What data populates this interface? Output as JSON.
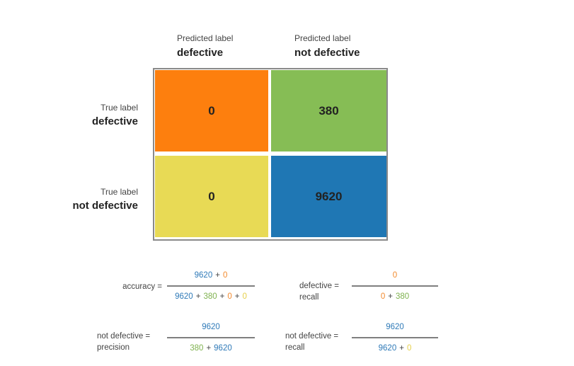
{
  "columns": [
    {
      "caption": "Predicted label",
      "label": "defective"
    },
    {
      "caption": "Predicted label",
      "label": "not defective"
    }
  ],
  "rows": [
    {
      "caption": "True label",
      "label": "defective"
    },
    {
      "caption": "True label",
      "label": "not defective"
    }
  ],
  "cells": [
    [
      {
        "value": 0,
        "color": "#fd7f0e"
      },
      {
        "value": 380,
        "color": "#86bd55"
      }
    ],
    [
      {
        "value": 0,
        "color": "#e8da55"
      },
      {
        "value": 9620,
        "color": "#1f77b4"
      }
    ]
  ],
  "formulas": [
    {
      "label": [
        "accuracy ="
      ],
      "numerator": [
        {
          "text": "9620",
          "color": "#2f7ab8"
        },
        {
          "text": "+"
        },
        {
          "text": "0",
          "color": "#f28a2e"
        }
      ],
      "denominator": [
        {
          "text": "9620",
          "color": "#2f7ab8"
        },
        {
          "text": "+"
        },
        {
          "text": "380",
          "color": "#7fb24f"
        },
        {
          "text": "+"
        },
        {
          "text": "0",
          "color": "#f28a2e"
        },
        {
          "text": "+"
        },
        {
          "text": "0",
          "color": "#e6d04a"
        }
      ]
    },
    {
      "label": [
        "defective =",
        "recall"
      ],
      "numerator": [
        {
          "text": "0",
          "color": "#f28a2e"
        }
      ],
      "denominator": [
        {
          "text": "0",
          "color": "#f28a2e"
        },
        {
          "text": "+"
        },
        {
          "text": "380",
          "color": "#7fb24f"
        }
      ]
    },
    {
      "label": [
        "not defective =",
        "precision"
      ],
      "numerator": [
        {
          "text": "9620",
          "color": "#2f7ab8"
        }
      ],
      "denominator": [
        {
          "text": "380",
          "color": "#7fb24f"
        },
        {
          "text": "+"
        },
        {
          "text": "9620",
          "color": "#2f7ab8"
        }
      ]
    },
    {
      "label": [
        "not defective =",
        "recall"
      ],
      "numerator": [
        {
          "text": "9620",
          "color": "#2f7ab8"
        }
      ],
      "denominator": [
        {
          "text": "9620",
          "color": "#2f7ab8"
        },
        {
          "text": "+"
        },
        {
          "text": "0",
          "color": "#e6d04a"
        }
      ]
    }
  ]
}
